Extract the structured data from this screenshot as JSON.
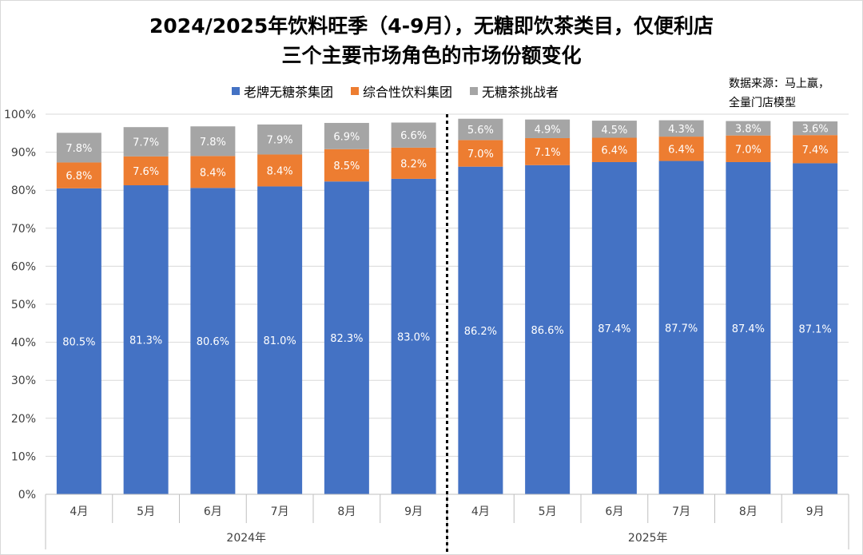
{
  "title": {
    "line1": "2024/2025年饮料旺季（4-9月），无糖即饮茶类目，仅便利店",
    "line2": "三个主要市场角色的市场份额变化"
  },
  "source_note": {
    "line1": "数据来源：马上赢，",
    "line2": "全量门店模型"
  },
  "chart_data": {
    "type": "bar",
    "stacked": true,
    "categories": [
      "4月",
      "5月",
      "6月",
      "7月",
      "8月",
      "9月",
      "4月",
      "5月",
      "6月",
      "7月",
      "8月",
      "9月"
    ],
    "groups": [
      {
        "label": "2024年",
        "start": 0,
        "end": 5
      },
      {
        "label": "2025年",
        "start": 6,
        "end": 11
      }
    ],
    "series": [
      {
        "name": "老牌无糖茶集团",
        "color": "#4472C4",
        "values": [
          80.5,
          81.3,
          80.6,
          81.0,
          82.3,
          83.0,
          86.2,
          86.6,
          87.4,
          87.7,
          87.4,
          87.1
        ]
      },
      {
        "name": "综合性饮料集团",
        "color": "#ED7D31",
        "values": [
          6.8,
          7.6,
          8.4,
          8.4,
          8.5,
          8.2,
          7.0,
          7.1,
          6.4,
          6.4,
          7.0,
          7.4
        ]
      },
      {
        "name": "无糖茶挑战者",
        "color": "#A5A5A5",
        "values": [
          7.8,
          7.7,
          7.8,
          7.9,
          6.9,
          6.6,
          5.6,
          4.9,
          4.5,
          4.3,
          3.8,
          3.6
        ]
      }
    ],
    "data_labels": [
      [
        "80.5%",
        "81.3%",
        "80.6%",
        "81.0%",
        "82.3%",
        "83.0%",
        "86.2%",
        "86.6%",
        "87.4%",
        "87.7%",
        "87.4%",
        "87.1%"
      ],
      [
        "6.8%",
        "7.6%",
        "8.4%",
        "8.4%",
        "8.5%",
        "8.2%",
        "7.0%",
        "7.1%",
        "6.4%",
        "6.4%",
        "7.0%",
        "7.4%"
      ],
      [
        "7.8%",
        "7.7%",
        "7.8%",
        "7.9%",
        "6.9%",
        "6.6%",
        "5.6%",
        "4.9%",
        "4.5%",
        "4.3%",
        "3.8%",
        "3.6%"
      ]
    ],
    "ylim": [
      0,
      100
    ],
    "yticks": [
      "0%",
      "10%",
      "20%",
      "30%",
      "40%",
      "50%",
      "60%",
      "70%",
      "80%",
      "90%",
      "100%"
    ],
    "grid": true,
    "legend": "top-center",
    "divider": "dashed line between 2024 and 2025 groups"
  }
}
